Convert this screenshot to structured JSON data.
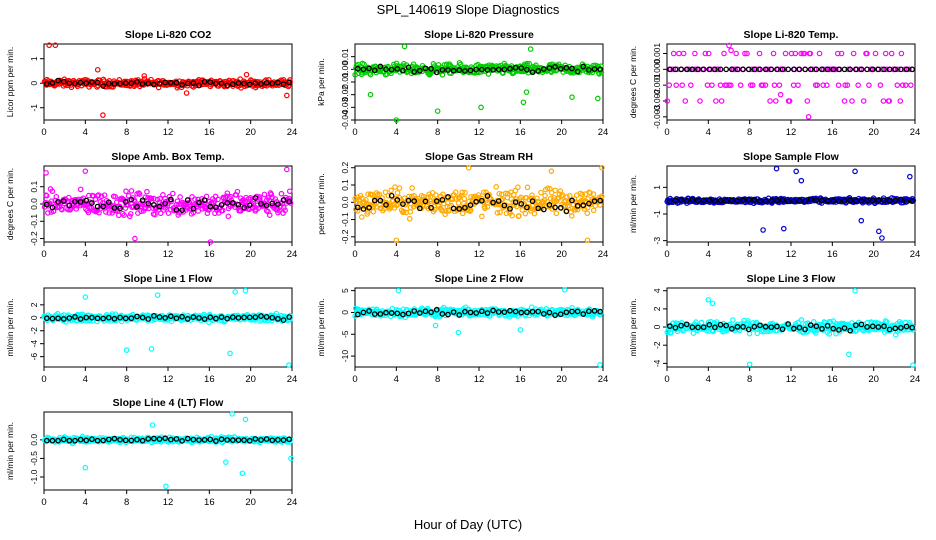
{
  "title": "SPL_140619  Slope Diagnostics",
  "xlabel": "Hour of Day (UTC)",
  "chart_data": [
    {
      "type": "scatter",
      "title": "Slope Li-820 CO2",
      "ylabel": "Licor ppm per min.",
      "color": "#ff0000",
      "xlim": [
        0,
        24
      ],
      "xticks": [
        0,
        4,
        8,
        12,
        16,
        20,
        24
      ],
      "ylim": [
        -1.5,
        1.6
      ],
      "yticks": [
        -1,
        0,
        1
      ],
      "yticklabels": [
        "-1",
        "0",
        "1"
      ],
      "spread": 0.22,
      "outliers": [
        [
          0.5,
          1.55
        ],
        [
          1.1,
          1.55
        ],
        [
          5.2,
          0.55
        ],
        [
          5.7,
          -1.3
        ],
        [
          9.7,
          0.3
        ],
        [
          13.8,
          -0.4
        ],
        [
          19.6,
          0.35
        ],
        [
          23.5,
          -0.5
        ]
      ]
    },
    {
      "type": "scatter",
      "title": "Slope Li-820 Pressure",
      "ylabel": "kPa per min.",
      "color": "#00cc00",
      "xlim": [
        0,
        24
      ],
      "xticks": [
        0,
        4,
        8,
        12,
        16,
        20,
        24
      ],
      "ylim": [
        -0.04,
        0.02
      ],
      "yticks": [
        -0.04,
        -0.03,
        -0.02,
        -0.01,
        0,
        0.01
      ],
      "yticklabels": [
        "-0.04",
        "-0.03",
        "-0.02",
        "-0.01",
        "0.00",
        "0.01"
      ],
      "spread": 0.006,
      "outliers": [
        [
          1.5,
          -0.02
        ],
        [
          4,
          -0.04
        ],
        [
          8,
          -0.033
        ],
        [
          12.2,
          -0.03
        ],
        [
          16.3,
          -0.026
        ],
        [
          16.6,
          -0.018
        ],
        [
          21,
          -0.022
        ],
        [
          23.5,
          -0.023
        ],
        [
          4.8,
          0.018
        ],
        [
          17,
          0.016
        ]
      ]
    },
    {
      "type": "scatter",
      "title": "Slope Li-820 Temp.",
      "ylabel": "degrees C per min.",
      "color": "#ff00ff",
      "xlim": [
        0,
        24
      ],
      "xticks": [
        0,
        4,
        8,
        12,
        16,
        20,
        24
      ],
      "ylim": [
        -0.0032,
        0.0016
      ],
      "yticks": [
        -0.003,
        -0.002,
        -0.001,
        0,
        0.001
      ],
      "yticklabels": [
        "-0.003",
        "-0.002",
        "-0.001",
        "0.000",
        "0.001"
      ],
      "spread": 0,
      "discrete": [
        0,
        0.001,
        -0.001,
        -0.002
      ],
      "outliers": [
        [
          6,
          0.0015
        ],
        [
          13.7,
          -0.003
        ],
        [
          6.2,
          0.0012
        ],
        [
          11,
          -0.0016
        ]
      ]
    },
    {
      "type": "scatter",
      "title": "Slope Amb. Box Temp.",
      "ylabel": "degrees C per min.",
      "color": "#ff00ff",
      "xlim": [
        0,
        24
      ],
      "xticks": [
        0,
        4,
        8,
        12,
        16,
        20,
        24
      ],
      "ylim": [
        -0.22,
        0.22
      ],
      "yticks": [
        -0.2,
        -0.1,
        0,
        0.1
      ],
      "yticklabels": [
        "-0.2",
        "-0.1",
        "0.0",
        "0.1"
      ],
      "spread": 0.1,
      "outliers": [
        [
          8.8,
          -0.2
        ],
        [
          16.1,
          -0.22
        ],
        [
          23.5,
          0.2
        ],
        [
          4,
          0.19
        ],
        [
          0.2,
          0.18
        ]
      ]
    },
    {
      "type": "scatter",
      "title": "Slope Gas Stream RH",
      "ylabel": "percent per min.",
      "color": "#ffaa00",
      "xlim": [
        0,
        24
      ],
      "xticks": [
        0,
        4,
        8,
        12,
        16,
        20,
        24
      ],
      "ylim": [
        -0.23,
        0.21
      ],
      "yticks": [
        -0.2,
        -0.1,
        0,
        0.1,
        0.2
      ],
      "yticklabels": [
        "-0.2",
        "-0.1",
        "0.0",
        "0.1",
        "0.2"
      ],
      "spread": 0.11,
      "outliers": [
        [
          11,
          0.2
        ],
        [
          19,
          0.18
        ],
        [
          23.9,
          0.2
        ],
        [
          4,
          -0.22
        ],
        [
          22.5,
          -0.22
        ]
      ]
    },
    {
      "type": "scatter",
      "title": "Slope Sample Flow",
      "ylabel": "ml/min per min.",
      "color": "#0000cc",
      "xlim": [
        0,
        24
      ],
      "xticks": [
        0,
        4,
        8,
        12,
        16,
        20,
        24
      ],
      "ylim": [
        -3.1,
        2.6
      ],
      "yticks": [
        -3,
        -1,
        1
      ],
      "yticklabels": [
        "-3",
        "-1",
        "1"
      ],
      "spread": 0.25,
      "outliers": [
        [
          10.6,
          2.4
        ],
        [
          12.5,
          2.2
        ],
        [
          18.2,
          2.2
        ],
        [
          9.3,
          -2.2
        ],
        [
          11.3,
          -2.1
        ],
        [
          20.5,
          -2.3
        ],
        [
          20.8,
          -2.8
        ],
        [
          23.5,
          1.8
        ],
        [
          18.8,
          -1.5
        ],
        [
          13,
          1.5
        ]
      ]
    },
    {
      "type": "scatter",
      "title": "Slope Line 1 Flow",
      "ylabel": "ml/min per min.",
      "color": "#00ffff",
      "xlim": [
        0,
        24
      ],
      "xticks": [
        0,
        4,
        8,
        12,
        16,
        20,
        24
      ],
      "ylim": [
        -7.6,
        4.6
      ],
      "yticks": [
        -6,
        -4,
        -2,
        0,
        2
      ],
      "yticklabels": [
        "-6",
        "-4",
        "-2",
        "0",
        "2"
      ],
      "spread": 0.8,
      "outliers": [
        [
          18.5,
          4
        ],
        [
          19.5,
          4.2
        ],
        [
          23.7,
          -7.3
        ],
        [
          8,
          -5
        ],
        [
          10.4,
          -4.8
        ],
        [
          18,
          -5.5
        ],
        [
          4,
          3.2
        ],
        [
          11,
          3.5
        ]
      ]
    },
    {
      "type": "scatter",
      "title": "Slope Line 2 Flow",
      "ylabel": "ml/min per min.",
      "color": "#00ffff",
      "xlim": [
        0,
        24
      ],
      "xticks": [
        0,
        4,
        8,
        12,
        16,
        20,
        24
      ],
      "ylim": [
        -12.5,
        5.6
      ],
      "yticks": [
        -10,
        -5,
        0,
        5
      ],
      "yticklabels": [
        "-10",
        "-5",
        "0",
        "5"
      ],
      "spread": 1.4,
      "outliers": [
        [
          4.2,
          5
        ],
        [
          20.3,
          5.2
        ],
        [
          23.7,
          -12
        ],
        [
          10,
          -4.6
        ],
        [
          7.8,
          -3
        ],
        [
          16,
          -4
        ]
      ]
    },
    {
      "type": "scatter",
      "title": "Slope Line 3 Flow",
      "ylabel": "ml/min per min.",
      "color": "#00ffff",
      "xlim": [
        0,
        24
      ],
      "xticks": [
        0,
        4,
        8,
        12,
        16,
        20,
        24
      ],
      "ylim": [
        -4.4,
        4.3
      ],
      "yticks": [
        -4,
        -2,
        0,
        2,
        4
      ],
      "yticklabels": [
        "-4",
        "-2",
        "0",
        "2",
        "4"
      ],
      "spread": 0.9,
      "outliers": [
        [
          8,
          -4.1
        ],
        [
          18.2,
          4
        ],
        [
          23.8,
          -4.2
        ],
        [
          4,
          3
        ],
        [
          17.6,
          -3
        ],
        [
          4.4,
          2.6
        ]
      ]
    },
    {
      "type": "scatter",
      "title": "Slope Line 4 (LT) Flow",
      "ylabel": "ml/min per min.",
      "color": "#00ffff",
      "xlim": [
        0,
        24
      ],
      "xticks": [
        0,
        4,
        8,
        12,
        16,
        20,
        24
      ],
      "ylim": [
        -1.35,
        0.75
      ],
      "yticks": [
        -1,
        -0.5,
        0
      ],
      "yticklabels": [
        "-1.0",
        "-0.5",
        "0.0"
      ],
      "spread": 0.1,
      "outliers": [
        [
          11.8,
          -1.25
        ],
        [
          18.2,
          0.7
        ],
        [
          19.5,
          0.55
        ],
        [
          4,
          -0.75
        ],
        [
          19.2,
          -0.9
        ],
        [
          23.9,
          -0.5
        ],
        [
          10.5,
          0.4
        ],
        [
          17.6,
          -0.6
        ]
      ]
    }
  ]
}
